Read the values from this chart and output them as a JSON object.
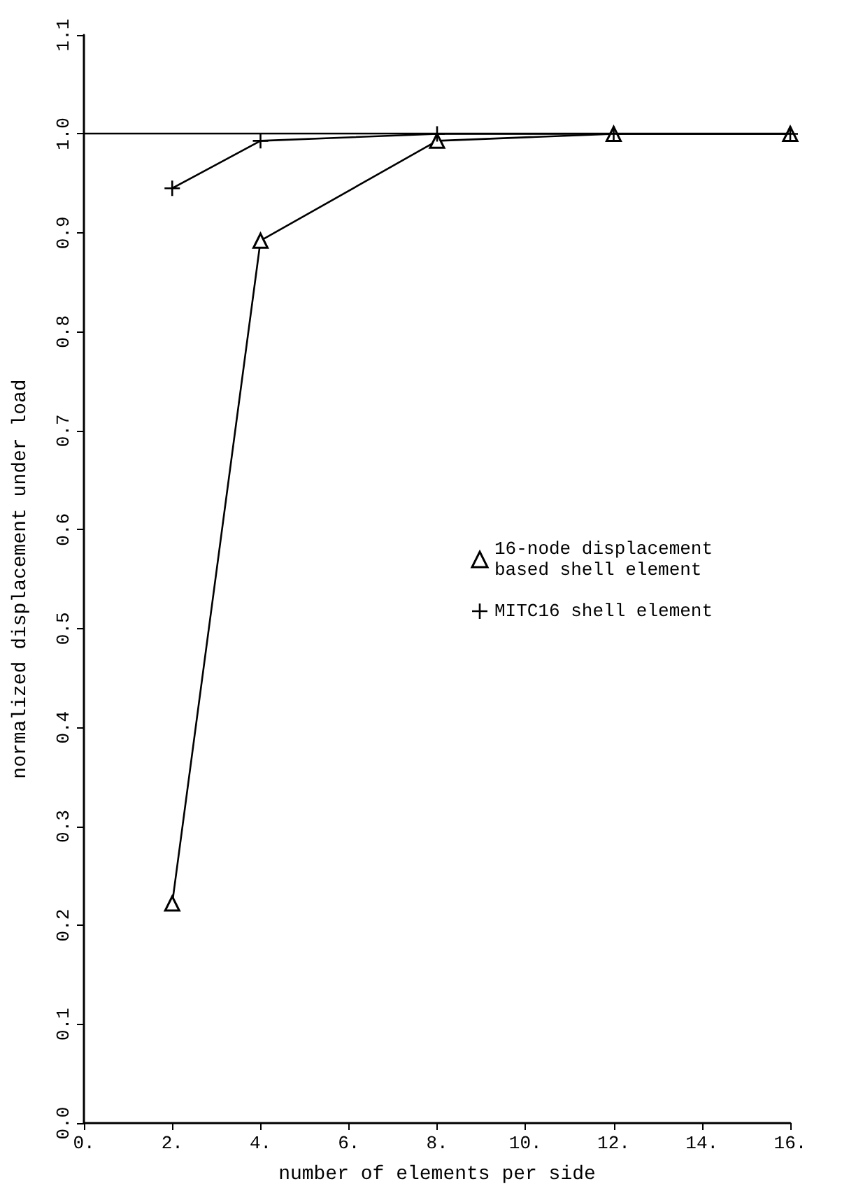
{
  "chart_data": {
    "type": "line",
    "xlabel": "number of elements per side",
    "ylabel": "normalized displacement under load",
    "x": [
      2,
      4,
      8,
      12,
      16
    ],
    "series": [
      {
        "name": "16-node displacement\nbased shell element",
        "color": "#000000",
        "marker": "triangle",
        "values": [
          0.222,
          0.892,
          0.993,
          1.0,
          1.0
        ]
      },
      {
        "name": "MITC16 shell element",
        "color": "#000000",
        "marker": "cross",
        "values": [
          0.945,
          0.993,
          1.0,
          1.0,
          1.0
        ]
      }
    ],
    "xlim": [
      0,
      16
    ],
    "xticks": [
      {
        "value": 0,
        "label": "0."
      },
      {
        "value": 2,
        "label": "2."
      },
      {
        "value": 4,
        "label": "4."
      },
      {
        "value": 6,
        "label": "6."
      },
      {
        "value": 8,
        "label": "8."
      },
      {
        "value": 10,
        "label": "10."
      },
      {
        "value": 12,
        "label": "12."
      },
      {
        "value": 14,
        "label": "14."
      },
      {
        "value": 16,
        "label": "16."
      }
    ],
    "ylim": [
      0,
      1.1
    ],
    "yticks": [
      {
        "value": 0,
        "label": "0.0"
      },
      {
        "value": 0.1,
        "label": "0.1"
      },
      {
        "value": 0.2,
        "label": "0.2"
      },
      {
        "value": 0.3,
        "label": "0.3"
      },
      {
        "value": 0.4,
        "label": "0.4"
      },
      {
        "value": 0.5,
        "label": "0.5"
      },
      {
        "value": 0.6,
        "label": "0.6"
      },
      {
        "value": 0.7,
        "label": "0.7"
      },
      {
        "value": 0.8,
        "label": "0.8"
      },
      {
        "value": 0.9,
        "label": "0.9"
      },
      {
        "value": 1.0,
        "label": "1.0"
      },
      {
        "value": 1.1,
        "label": "1.1"
      }
    ],
    "ref_lines": [
      {
        "axis": "y",
        "value": 1.0,
        "color": "#000000"
      }
    ],
    "line_style": "solid",
    "grid": false,
    "legend": "right"
  }
}
